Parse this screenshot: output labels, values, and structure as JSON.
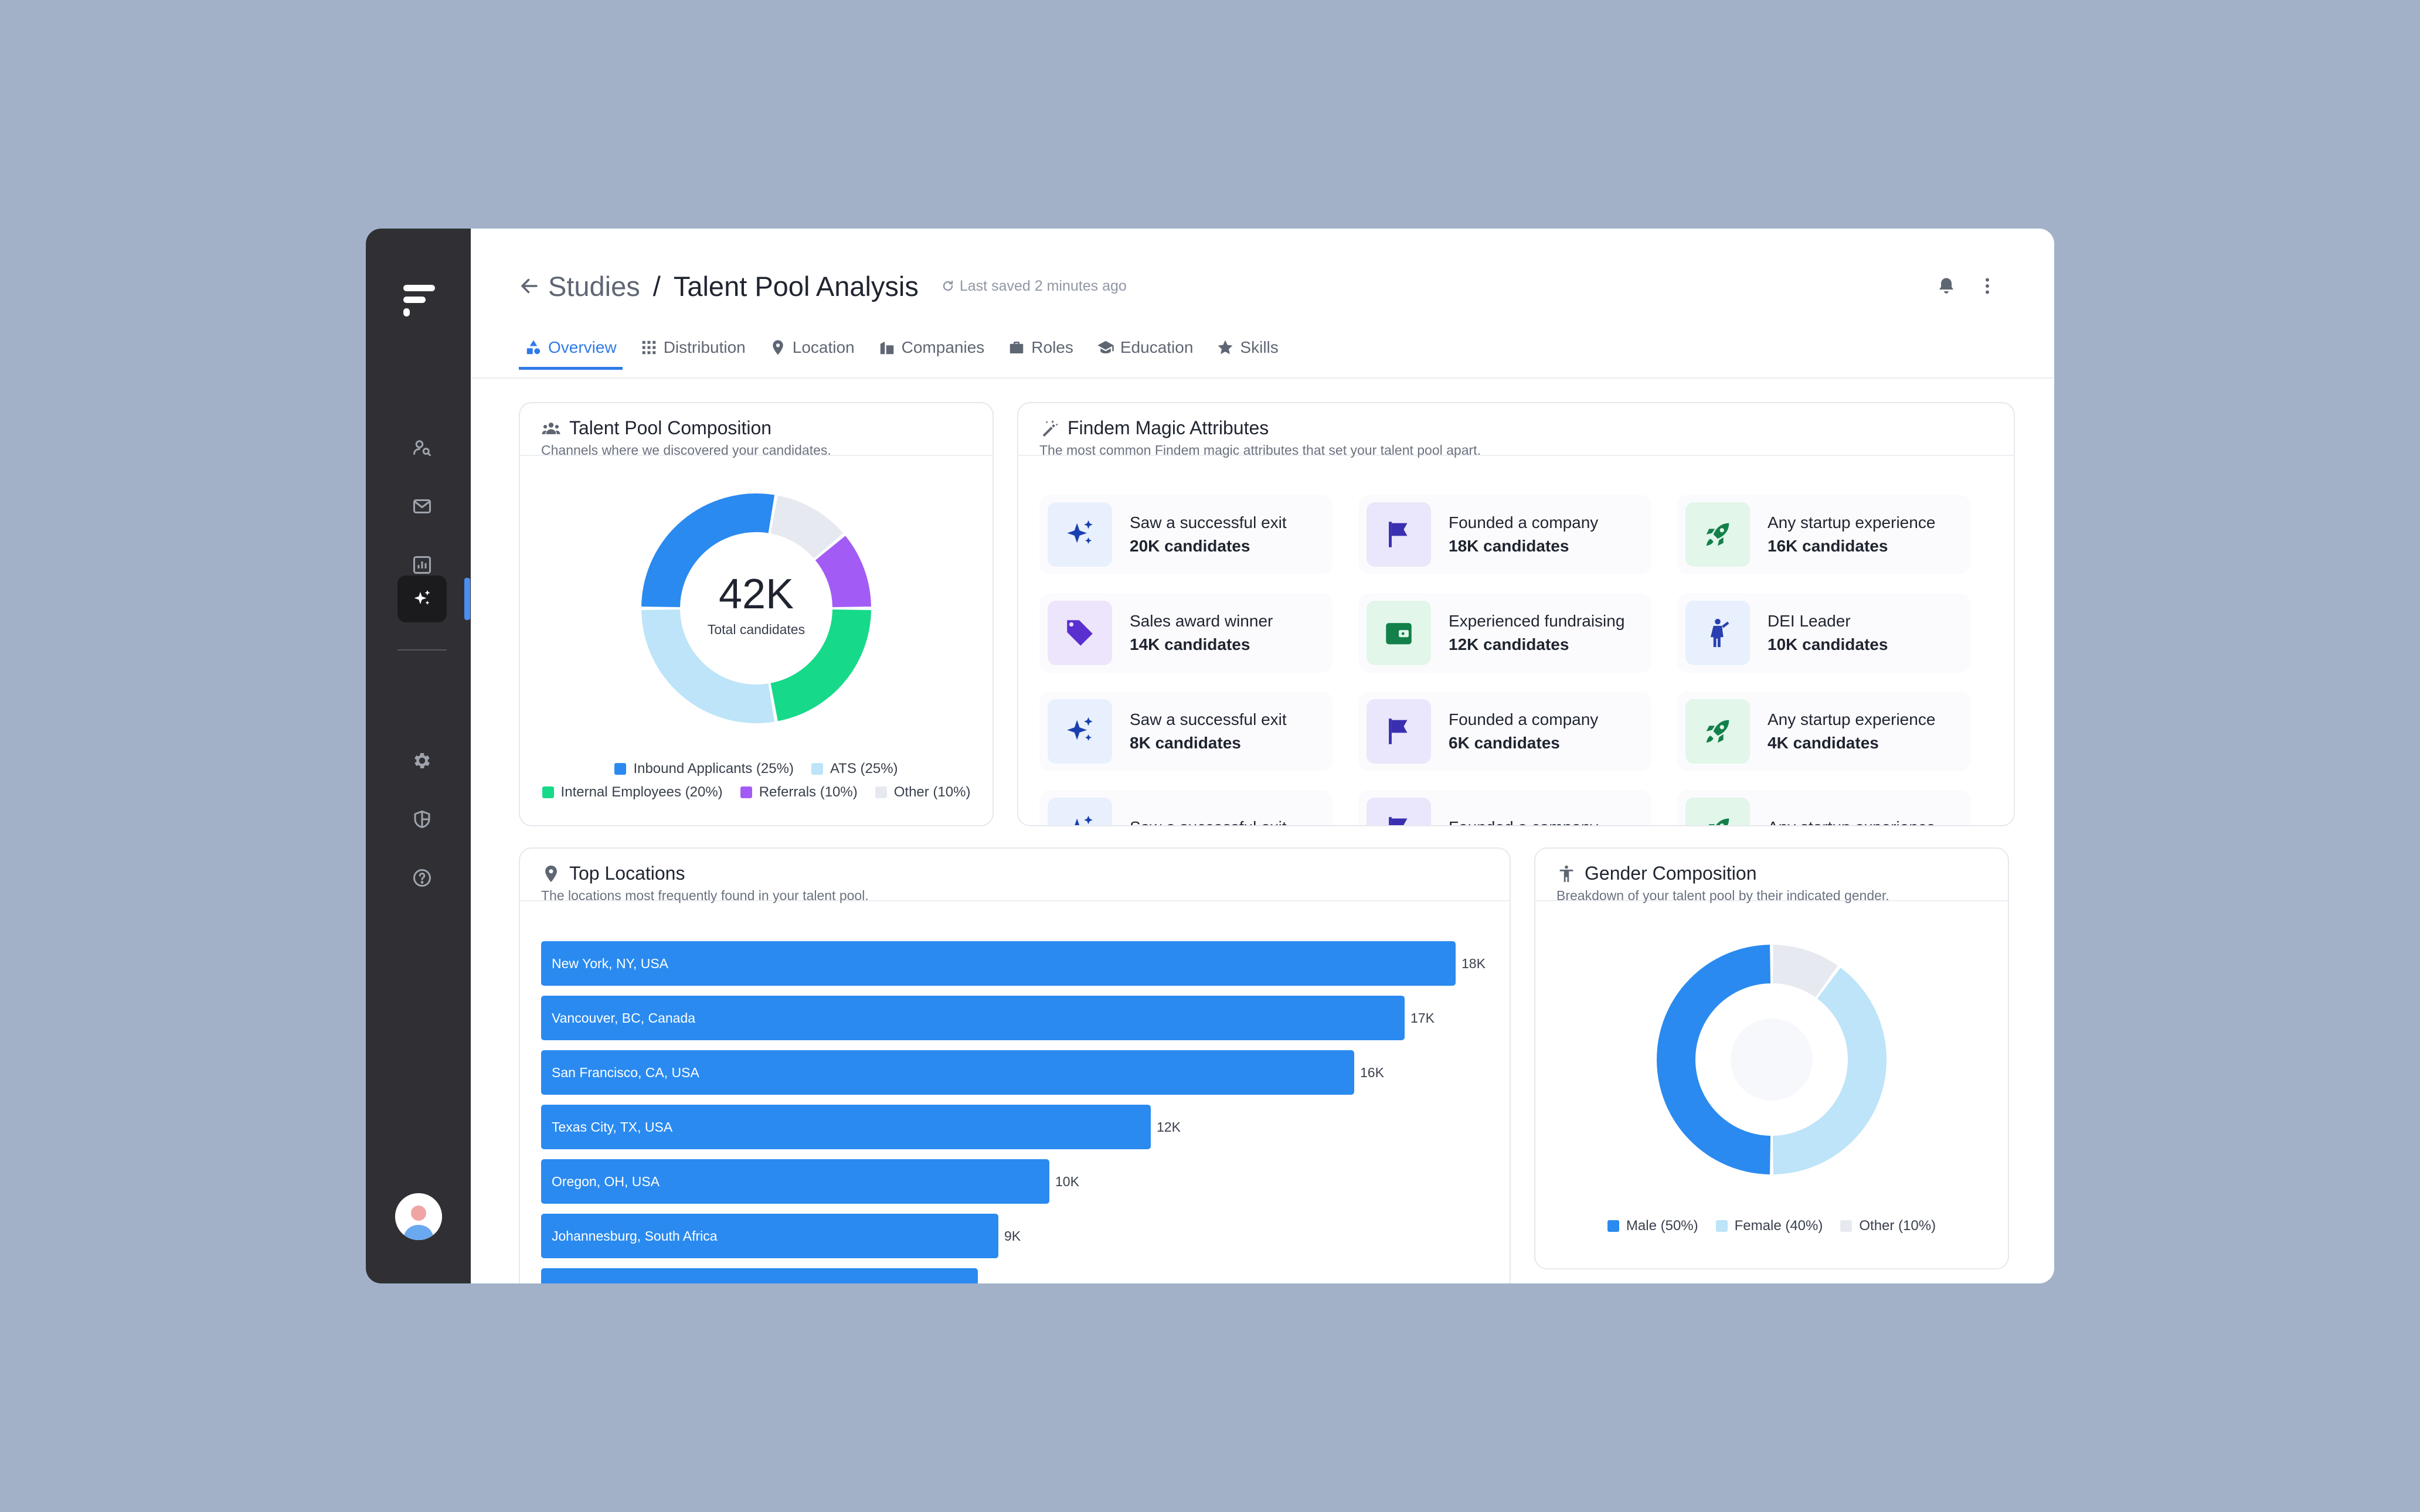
{
  "header": {
    "back_icon": "arrow-left-icon",
    "breadcrumb_parent": "Studies",
    "separator": "/",
    "title": "Talent Pool Analysis",
    "saved_status": "Last saved 2 minutes ago"
  },
  "tabs": [
    {
      "label": "Overview",
      "icon": "shapes-icon",
      "active": true
    },
    {
      "label": "Distribution",
      "icon": "grid-icon"
    },
    {
      "label": "Location",
      "icon": "pin-icon"
    },
    {
      "label": "Companies",
      "icon": "building-icon"
    },
    {
      "label": "Roles",
      "icon": "briefcase-icon"
    },
    {
      "label": "Education",
      "icon": "graduation-cap-icon"
    },
    {
      "label": "Skills",
      "icon": "star-icon"
    }
  ],
  "composition": {
    "title": "Talent Pool Composition",
    "subtitle": "Channels where we discovered your candidates.",
    "center_value": "42K",
    "center_label": "Total candidates"
  },
  "magic": {
    "title": "Findem Magic Attributes",
    "subtitle": "The most common Findem magic attributes that set your talent pool apart.",
    "items": [
      {
        "name": "Saw a successful exit",
        "count": "20K candidates",
        "icon": "sparkles-icon",
        "bg": "#E8F0FE",
        "fg": "#1A3FB0"
      },
      {
        "name": "Founded a company",
        "count": "18K candidates",
        "icon": "flag-icon",
        "bg": "#EAE6FB",
        "fg": "#3A2FB0"
      },
      {
        "name": "Any startup experience",
        "count": "16K candidates",
        "icon": "rocket-icon",
        "bg": "#E2F6EA",
        "fg": "#13804A"
      },
      {
        "name": "Sales award winner",
        "count": "14K candidates",
        "icon": "tag-icon",
        "bg": "#EDE5FB",
        "fg": "#5A2FD0"
      },
      {
        "name": "Experienced fundraising",
        "count": "12K candidates",
        "icon": "wallet-icon",
        "bg": "#E2F6EA",
        "fg": "#13804A"
      },
      {
        "name": "DEI Leader",
        "count": "10K candidates",
        "icon": "person-icon",
        "bg": "#E8F0FE",
        "fg": "#2A3FB0"
      },
      {
        "name": "Saw a successful exit",
        "count": "8K candidates",
        "icon": "sparkles-icon",
        "bg": "#E8F0FE",
        "fg": "#1A3FB0"
      },
      {
        "name": "Founded a company",
        "count": "6K candidates",
        "icon": "flag-icon",
        "bg": "#EAE6FB",
        "fg": "#3A2FB0"
      },
      {
        "name": "Any startup experience",
        "count": "4K candidates",
        "icon": "rocket-icon",
        "bg": "#E2F6EA",
        "fg": "#13804A"
      },
      {
        "name": "Saw a successful exit",
        "count": "",
        "icon": "sparkles-icon",
        "bg": "#E8F0FE",
        "fg": "#1A3FB0"
      },
      {
        "name": "Founded a company",
        "count": "",
        "icon": "flag-icon",
        "bg": "#EAE6FB",
        "fg": "#3A2FB0"
      },
      {
        "name": "Any startup experience",
        "count": "",
        "icon": "rocket-icon",
        "bg": "#E2F6EA",
        "fg": "#13804A"
      }
    ]
  },
  "locations": {
    "title": "Top Locations",
    "subtitle": "The locations most frequently found in your talent pool."
  },
  "gender": {
    "title": "Gender Composition",
    "subtitle": "Breakdown of your talent pool by their indicated gender."
  },
  "chart_data": [
    {
      "type": "pie",
      "name": "talent-pool-composition",
      "title": "Talent Pool Composition",
      "categories": [
        "Inbound Applicants (25%)",
        "ATS (25%)",
        "Internal Employees (20%)",
        "Referrals (10%)",
        "Other (10%)"
      ],
      "values": [
        25,
        25,
        20,
        10,
        10
      ],
      "colors": [
        "#2A8AF0",
        "#BDE4F8",
        "#16D98A",
        "#A25CF5",
        "#E6E9F0"
      ],
      "legend_placement": "bottom"
    },
    {
      "type": "bar",
      "name": "top-locations",
      "title": "Top Locations",
      "orientation": "horizontal",
      "categories": [
        "New York, NY, USA",
        "Vancouver, BC, Canada",
        "San Francisco, CA, USA",
        "Texas City, TX, USA",
        "Oregon, OH, USA",
        "Johannesburg, South Africa",
        ""
      ],
      "values": [
        18,
        17,
        16,
        12,
        10,
        9,
        8.6
      ],
      "value_labels": [
        "18K",
        "17K",
        "16K",
        "12K",
        "10K",
        "9K",
        ""
      ],
      "xlim": [
        0,
        18
      ],
      "color": "#2A8AF0"
    },
    {
      "type": "pie",
      "name": "gender-composition",
      "title": "Gender Composition",
      "categories": [
        "Male (50%)",
        "Female (40%)",
        "Other (10%)"
      ],
      "values": [
        50,
        40,
        10
      ],
      "colors": [
        "#2A8AF0",
        "#BDE4F8",
        "#E6E9F0"
      ],
      "legend_placement": "bottom"
    }
  ]
}
